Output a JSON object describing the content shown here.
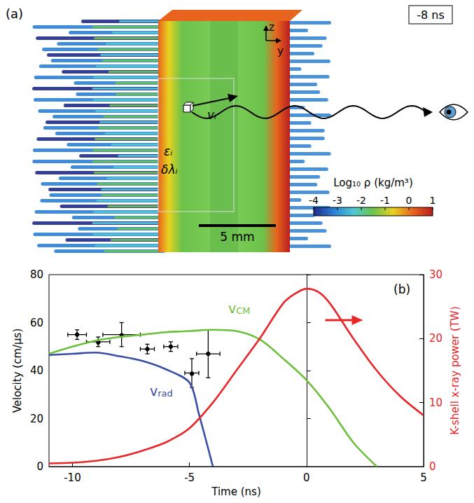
{
  "panel_a": {
    "label": "(a)",
    "time": "-8 ns",
    "axes": [
      "z",
      "y"
    ],
    "annotations": [
      "vᵢ",
      "εᵢ",
      "δλᵢ"
    ],
    "scale_bar": "5 mm",
    "colorbar": {
      "title": "Log₁₀ ρ (kg/m³)",
      "range": [
        -4,
        1
      ],
      "ticks": [
        -4,
        -3,
        -2,
        -1,
        0,
        1
      ],
      "colors": [
        "#1f2a8a",
        "#2a7fd4",
        "#4fc7d6",
        "#6cc24a",
        "#e8d21e",
        "#e8641e",
        "#b81e1e"
      ]
    }
  },
  "chart_data": {
    "type": "line",
    "label": "(b)",
    "xlabel": "Time (ns)",
    "ylabel": "Velocity (cm/µs)",
    "y2label": "K-shell x-ray power (TW)",
    "xlim": [
      -11,
      5
    ],
    "xticks": [
      -10,
      -5,
      0,
      5
    ],
    "ylim": [
      0,
      80
    ],
    "yticks": [
      0,
      20,
      40,
      60,
      80
    ],
    "y2lim": [
      0,
      30
    ],
    "y2ticks": [
      0,
      10,
      20,
      30
    ],
    "grid": false,
    "series": [
      {
        "name": "vCM",
        "color": "#6cbf3a",
        "x": [
          -11,
          -10,
          -9,
          -8,
          -7,
          -6,
          -5,
          -4,
          -3,
          -2,
          -1,
          0,
          1,
          2,
          3
        ],
        "values": [
          47,
          50,
          52.5,
          54,
          55,
          56,
          56.5,
          57,
          56.5,
          53,
          45,
          36,
          24,
          10,
          0
        ]
      },
      {
        "name": "vrad",
        "color": "#3b4ea5",
        "x": [
          -11,
          -10,
          -9,
          -8,
          -7,
          -6,
          -5,
          -4.6,
          -4
        ],
        "values": [
          46.5,
          47,
          47.5,
          46,
          44,
          40.5,
          35,
          22,
          0
        ]
      },
      {
        "axis": "y2",
        "color": "#e8262a",
        "x": [
          -11,
          -10,
          -9,
          -8,
          -7,
          -6,
          -5,
          -4,
          -3,
          -2,
          -1,
          -0.5,
          0,
          0.5,
          1,
          2,
          3,
          4,
          5
        ],
        "values": [
          0.5,
          0.6,
          0.9,
          1.5,
          2.5,
          3.8,
          6,
          10,
          15,
          20,
          25.5,
          27,
          27.8,
          27.3,
          25.5,
          20,
          15,
          11,
          8
        ]
      },
      {
        "type": "scatter",
        "color": "#000000",
        "marker": "circle",
        "x": [
          -9.8,
          -8.9,
          -7.9,
          -6.8,
          -5.8,
          -4.9,
          -4.2
        ],
        "values": [
          55,
          52,
          55,
          49,
          50,
          39,
          47
        ],
        "x_error": [
          0.4,
          0.5,
          0.8,
          0.3,
          0.3,
          0.3,
          0.5
        ],
        "y_error": [
          2,
          2,
          5,
          2,
          2,
          6,
          10
        ]
      }
    ]
  }
}
